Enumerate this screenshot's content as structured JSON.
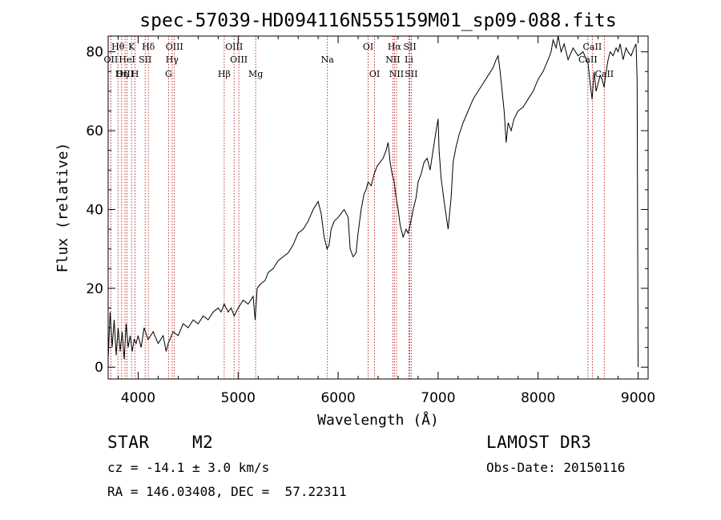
{
  "chart_data": {
    "type": "line",
    "title": "spec-57039-HD094116N555159M01_sp09-088.fits",
    "xlabel": "Wavelength (Å)",
    "ylabel": "Flux (relative)",
    "xlim": [
      3700,
      9100
    ],
    "ylim": [
      -3,
      84
    ],
    "xticks": [
      4000,
      5000,
      6000,
      7000,
      8000,
      9000
    ],
    "yticks": [
      0,
      20,
      40,
      60,
      80
    ],
    "series": [
      {
        "name": "flux",
        "x": [
          3700,
          3720,
          3740,
          3760,
          3780,
          3800,
          3820,
          3840,
          3860,
          3880,
          3900,
          3920,
          3940,
          3960,
          3980,
          4000,
          4030,
          4060,
          4100,
          4150,
          4200,
          4250,
          4280,
          4300,
          4350,
          4400,
          4450,
          4500,
          4550,
          4600,
          4650,
          4700,
          4750,
          4800,
          4830,
          4860,
          4900,
          4930,
          4960,
          5000,
          5050,
          5100,
          5150,
          5170,
          5190,
          5220,
          5270,
          5300,
          5350,
          5400,
          5450,
          5500,
          5550,
          5600,
          5650,
          5700,
          5750,
          5800,
          5830,
          5860,
          5890,
          5910,
          5930,
          5960,
          6000,
          6030,
          6060,
          6100,
          6120,
          6150,
          6180,
          6200,
          6230,
          6260,
          6280,
          6300,
          6330,
          6360,
          6390,
          6420,
          6450,
          6480,
          6500,
          6520,
          6540,
          6560,
          6580,
          6600,
          6620,
          6650,
          6680,
          6700,
          6720,
          6750,
          6780,
          6800,
          6830,
          6860,
          6890,
          6920,
          6950,
          6980,
          7000,
          7010,
          7030,
          7060,
          7100,
          7130,
          7150,
          7180,
          7210,
          7250,
          7300,
          7350,
          7400,
          7450,
          7500,
          7550,
          7580,
          7600,
          7620,
          7640,
          7660,
          7680,
          7700,
          7730,
          7760,
          7800,
          7850,
          7900,
          7950,
          8000,
          8050,
          8100,
          8130,
          8150,
          8180,
          8200,
          8230,
          8260,
          8300,
          8350,
          8400,
          8450,
          8500,
          8520,
          8540,
          8560,
          8580,
          8600,
          8620,
          8640,
          8660,
          8680,
          8700,
          8720,
          8750,
          8780,
          8800,
          8820,
          8850,
          8880,
          8900,
          8930,
          8960,
          8980,
          8990,
          9000
        ],
        "y": [
          2,
          14,
          5,
          12,
          3,
          10,
          4,
          9,
          2,
          11,
          5,
          8,
          4,
          7,
          6,
          8,
          5,
          10,
          7,
          9,
          6,
          8,
          4,
          6,
          9,
          8,
          11,
          10,
          12,
          11,
          13,
          12,
          14,
          15,
          14,
          16,
          14,
          15,
          13,
          15,
          17,
          16,
          18,
          12,
          20,
          21,
          22,
          24,
          25,
          27,
          28,
          29,
          31,
          34,
          35,
          37,
          40,
          42,
          39,
          33,
          30,
          31,
          35,
          37,
          38,
          39,
          40,
          38,
          30,
          28,
          29,
          34,
          40,
          44,
          45,
          47,
          46,
          49,
          51,
          52,
          53,
          55,
          57,
          52,
          49,
          47,
          43,
          40,
          36,
          33,
          35,
          34,
          36,
          40,
          43,
          47,
          49,
          52,
          53,
          50,
          55,
          60,
          63,
          55,
          48,
          42,
          35,
          43,
          52,
          56,
          59,
          62,
          65,
          68,
          70,
          72,
          74,
          76,
          78,
          79,
          75,
          70,
          65,
          57,
          62,
          60,
          63,
          65,
          66,
          68,
          70,
          73,
          75,
          78,
          80,
          83,
          81,
          84,
          80,
          82,
          78,
          81,
          79,
          80,
          77,
          72,
          68,
          75,
          70,
          72,
          74,
          73,
          71,
          75,
          78,
          80,
          79,
          81,
          80,
          82,
          78,
          81,
          80,
          79,
          81,
          82,
          73,
          0
        ]
      }
    ],
    "line_markers": [
      {
        "label": "Hθ",
        "wavelength": 3798,
        "row": 1
      },
      {
        "label": "OII",
        "wavelength": 3727,
        "row": 2
      },
      {
        "label": "OIII",
        "wavelength": 3869,
        "row": 3
      },
      {
        "label": "K",
        "wavelength": 3934,
        "row": 1
      },
      {
        "label": "HeI",
        "wavelength": 3889,
        "row": 2
      },
      {
        "label": "Hη",
        "wavelength": 3835,
        "row": 3
      },
      {
        "label": "SII",
        "wavelength": 4070,
        "row": 2
      },
      {
        "label": "H",
        "wavelength": 3969,
        "row": 3
      },
      {
        "label": "Hδ",
        "wavelength": 4102,
        "row": 1
      },
      {
        "label": "OIII",
        "wavelength": 4363,
        "row": 1
      },
      {
        "label": "Hγ",
        "wavelength": 4340,
        "row": 2
      },
      {
        "label": "G",
        "wavelength": 4304,
        "row": 3
      },
      {
        "label": "Hβ",
        "wavelength": 4861,
        "row": 3
      },
      {
        "label": "OIII",
        "wavelength": 4959,
        "row": 1
      },
      {
        "label": "OIII",
        "wavelength": 5007,
        "row": 2
      },
      {
        "label": "Mg",
        "wavelength": 5175,
        "row": 3
      },
      {
        "label": "Na",
        "wavelength": 5893,
        "row": 2
      },
      {
        "label": "OI",
        "wavelength": 6300,
        "row": 1
      },
      {
        "label": "OI",
        "wavelength": 6364,
        "row": 3
      },
      {
        "label": "Hα",
        "wavelength": 6563,
        "row": 1
      },
      {
        "label": "NII",
        "wavelength": 6548,
        "row": 2
      },
      {
        "label": "NII",
        "wavelength": 6584,
        "row": 3
      },
      {
        "label": "SII",
        "wavelength": 6717,
        "row": 1
      },
      {
        "label": "Li",
        "wavelength": 6708,
        "row": 2
      },
      {
        "label": "SII",
        "wavelength": 6731,
        "row": 3
      },
      {
        "label": "CaII",
        "wavelength": 8542,
        "row": 1
      },
      {
        "label": "CaII",
        "wavelength": 8498,
        "row": 2
      },
      {
        "label": "CaII",
        "wavelength": 8662,
        "row": 3
      }
    ],
    "grid": false,
    "line_color": "#000000",
    "marker_color": "#b30000"
  },
  "info": {
    "class": "STAR",
    "subclass": "M2",
    "survey": "LAMOST DR3",
    "cz": "cz = -14.1 ± 3.0 km/s",
    "obs_date": "Obs-Date: 20150116",
    "coords": "RA = 146.03408, DEC =  57.22311"
  }
}
